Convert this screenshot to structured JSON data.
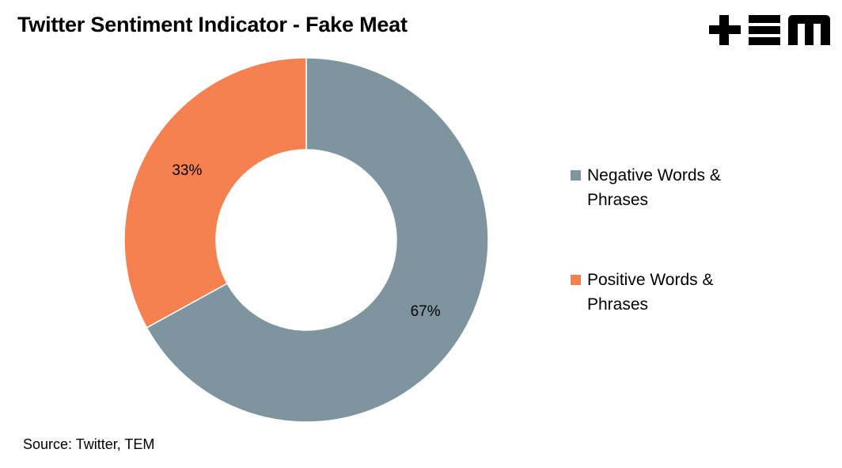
{
  "title": "Twitter Sentiment Indicator - Fake Meat",
  "logo": {
    "icon": "tem-logo-icon",
    "text": "+EM",
    "color": "#000000"
  },
  "source": "Source: Twitter, TEM",
  "chart_data": {
    "type": "pie",
    "style": "donut",
    "categories": [
      "Negative Words & Phrases",
      "Positive Words & Phrases"
    ],
    "values": [
      67,
      33
    ],
    "data_labels": [
      "67%",
      "33%"
    ],
    "colors": [
      "#7E949F",
      "#F4814F"
    ],
    "legend_position": "right",
    "start_angle_deg": 0,
    "direction": "clockwise"
  }
}
